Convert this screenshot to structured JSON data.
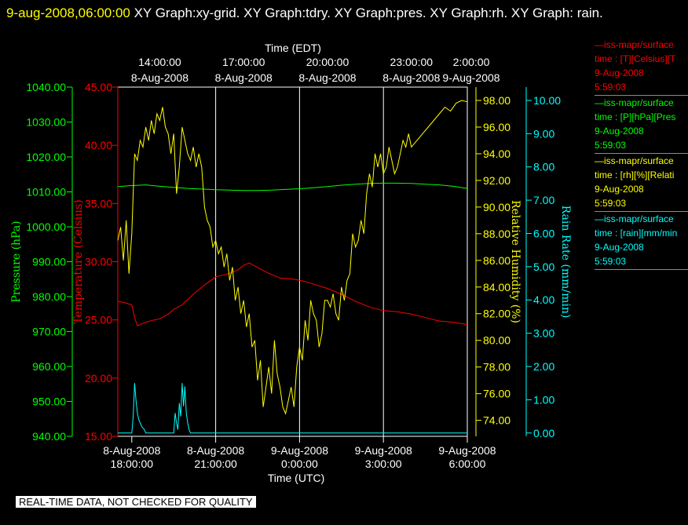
{
  "header": {
    "timestamp": "9-aug-2008,06:00:00",
    "graph_titles": "XY Graph:xy-grid.  XY Graph:tdry.  XY Graph:pres.  XY Graph:rh.  XY Graph: rain."
  },
  "legend": [
    {
      "name": "—iss-mapr/surface",
      "units": "time : [T][Celsius][T",
      "date": "9-Aug-2008",
      "time": "5:59:03",
      "color": "#ff0000"
    },
    {
      "name": "—iss-mapr/surface",
      "units": "time : [P][hPa][Pres",
      "date": "9-Aug-2008",
      "time": "5:59:03",
      "color": "#00ff00"
    },
    {
      "name": "—iss-mapr/surface",
      "units": "time : [rh][%][Relati",
      "date": "9-Aug-2008",
      "time": "5:59:03",
      "color": "#ffff00"
    },
    {
      "name": "—iss-mapr/surface",
      "units": "time : [rain][mm/min",
      "date": "9-Aug-2008",
      "time": "5:59:03",
      "color": "#00ffff"
    }
  ],
  "disclaimer": "REAL-TIME DATA, NOT CHECKED FOR QUALITY",
  "chart_data": {
    "type": "line",
    "x_top_label": "Time (EDT)",
    "x_bottom_label": "Time (UTC)",
    "x_range_utc_hours": [
      17.5,
      30.0
    ],
    "top_ticks": [
      {
        "hour": 19,
        "line1": "14:00:00",
        "line2": "8-Aug-2008"
      },
      {
        "hour": 22,
        "line1": "17:00:00",
        "line2": "8-Aug-2008"
      },
      {
        "hour": 25,
        "line1": "20:00:00",
        "line2": "8-Aug-2008"
      },
      {
        "hour": 28,
        "line1": "23:00:00",
        "line2": "8-Aug-2008"
      },
      {
        "hour": 31,
        "line1": "2:00:00",
        "line2": "9-Aug-2008"
      }
    ],
    "bottom_ticks": [
      {
        "hour": 18,
        "line1": "8-Aug-2008",
        "line2": "18:00:00"
      },
      {
        "hour": 21,
        "line1": "8-Aug-2008",
        "line2": "21:00:00"
      },
      {
        "hour": 24,
        "line1": "9-Aug-2008",
        "line2": "0:00:00"
      },
      {
        "hour": 27,
        "line1": "9-Aug-2008",
        "line2": "3:00:00"
      },
      {
        "hour": 30,
        "line1": "9-Aug-2008",
        "line2": "6:00:00"
      }
    ],
    "axes": {
      "pressure": {
        "label": "Pressure (hPa)",
        "color": "#00ff00",
        "range": [
          940,
          1040
        ],
        "ticks": [
          "940.00",
          "950.00",
          "960.00",
          "970.00",
          "980.00",
          "990.00",
          "1000.00",
          "1010.00",
          "1020.00",
          "1030.00",
          "1040.00"
        ]
      },
      "temperature": {
        "label": "Temperature (Celsius)",
        "color": "#ff0000",
        "range": [
          15,
          45
        ],
        "ticks": [
          "15.00",
          "20.00",
          "25.00",
          "30.00",
          "35.00",
          "40.00",
          "45.00"
        ]
      },
      "humidity": {
        "label": "Relative Humidity (%)",
        "color": "#ffff00",
        "range": [
          72.8,
          99.0
        ],
        "ticks": [
          "74.00",
          "76.00",
          "78.00",
          "80.00",
          "82.00",
          "84.00",
          "86.00",
          "88.00",
          "90.00",
          "92.00",
          "94.00",
          "96.00",
          "98.00"
        ]
      },
      "rain": {
        "label": "Rain Rate (mm/min)",
        "color": "#00ffff",
        "range": [
          -0.1,
          10.4
        ],
        "ticks": [
          "0.00",
          "1.00",
          "2.00",
          "3.00",
          "4.00",
          "5.00",
          "6.00",
          "7.00",
          "8.00",
          "9.00",
          "10.00"
        ]
      }
    },
    "series": [
      {
        "name": "temperature",
        "axis": "temperature",
        "color": "#ff0000",
        "x": [
          17.5,
          17.7,
          18.0,
          18.1,
          18.2,
          18.5,
          18.8,
          19.0,
          19.3,
          19.5,
          19.8,
          20.2,
          20.6,
          21.0,
          21.5,
          21.8,
          22.0,
          22.2,
          22.5,
          22.9,
          23.3,
          23.8,
          24.2,
          24.6,
          25.0,
          25.5,
          26.0,
          26.5,
          27.0,
          27.5,
          28.0,
          28.5,
          29.0,
          29.5,
          30.0
        ],
        "y": [
          26.6,
          26.5,
          26.3,
          25.2,
          24.5,
          24.8,
          25.0,
          25.1,
          25.5,
          25.9,
          26.3,
          27.2,
          28.0,
          28.7,
          29.0,
          29.3,
          29.7,
          29.9,
          29.5,
          29.0,
          28.6,
          28.5,
          28.3,
          28.0,
          27.7,
          27.2,
          26.6,
          26.1,
          25.8,
          25.7,
          25.5,
          25.2,
          24.9,
          24.8,
          24.6
        ]
      },
      {
        "name": "pressure",
        "axis": "pressure",
        "color": "#00ff00",
        "x": [
          17.5,
          18.0,
          18.5,
          19.0,
          19.5,
          20.0,
          20.5,
          21.0,
          21.5,
          22.0,
          22.5,
          23.0,
          23.5,
          24.0,
          24.5,
          25.0,
          25.5,
          26.0,
          26.5,
          27.0,
          27.5,
          28.0,
          28.5,
          29.0,
          29.5,
          30.0
        ],
        "y": [
          1011.5,
          1011.8,
          1012.0,
          1011.6,
          1011.3,
          1011.0,
          1010.8,
          1010.6,
          1010.5,
          1010.4,
          1010.4,
          1010.5,
          1010.7,
          1010.9,
          1011.2,
          1011.5,
          1011.9,
          1012.2,
          1012.4,
          1012.5,
          1012.5,
          1012.4,
          1012.2,
          1012.0,
          1011.6,
          1011.0
        ]
      },
      {
        "name": "humidity",
        "axis": "humidity",
        "color": "#ffff00",
        "x": [
          17.5,
          17.6,
          17.7,
          17.8,
          17.9,
          18.0,
          18.1,
          18.2,
          18.3,
          18.4,
          18.5,
          18.6,
          18.7,
          18.8,
          18.9,
          19.0,
          19.1,
          19.2,
          19.3,
          19.4,
          19.5,
          19.6,
          19.7,
          19.8,
          19.9,
          20.0,
          20.1,
          20.2,
          20.3,
          20.4,
          20.5,
          20.6,
          20.7,
          20.8,
          20.9,
          21.0,
          21.1,
          21.2,
          21.3,
          21.4,
          21.5,
          21.6,
          21.7,
          21.8,
          21.9,
          22.0,
          22.1,
          22.2,
          22.3,
          22.4,
          22.5,
          22.6,
          22.7,
          22.8,
          22.9,
          23.0,
          23.1,
          23.2,
          23.3,
          23.4,
          23.5,
          23.6,
          23.7,
          23.8,
          23.9,
          24.0,
          24.1,
          24.2,
          24.3,
          24.4,
          24.5,
          24.6,
          24.7,
          24.8,
          24.9,
          25.0,
          25.1,
          25.2,
          25.3,
          25.4,
          25.5,
          25.6,
          25.7,
          25.8,
          25.9,
          26.0,
          26.1,
          26.2,
          26.3,
          26.4,
          26.5,
          26.6,
          26.7,
          26.8,
          26.9,
          27.0,
          27.1,
          27.2,
          27.3,
          27.4,
          27.5,
          27.6,
          27.7,
          27.8,
          27.9,
          28.0,
          28.2,
          28.4,
          28.6,
          28.8,
          29.0,
          29.2,
          29.4,
          29.6,
          29.8,
          30.0
        ],
        "y": [
          87.5,
          88.5,
          86.0,
          89.0,
          85.0,
          88.0,
          94.0,
          93.5,
          95.0,
          94.5,
          96.0,
          95.0,
          96.5,
          95.5,
          97.0,
          96.5,
          97.5,
          96.0,
          95.5,
          94.0,
          95.5,
          91.0,
          93.0,
          96.0,
          95.0,
          94.0,
          93.5,
          94.5,
          93.0,
          94.0,
          93.0,
          90.0,
          89.0,
          88.5,
          87.0,
          87.5,
          86.5,
          87.0,
          85.5,
          86.5,
          84.5,
          85.5,
          83.0,
          84.0,
          82.0,
          83.0,
          81.0,
          82.0,
          79.5,
          80.0,
          77.0,
          78.5,
          75.0,
          76.5,
          78.0,
          76.0,
          80.0,
          77.5,
          76.5,
          75.0,
          74.5,
          75.5,
          76.5,
          75.0,
          78.0,
          79.5,
          78.5,
          81.5,
          80.0,
          83.0,
          82.0,
          81.5,
          79.5,
          80.5,
          83.0,
          83.0,
          82.5,
          83.5,
          82.0,
          81.5,
          84.0,
          83.0,
          84.5,
          85.0,
          88.0,
          87.0,
          87.5,
          89.0,
          88.0,
          91.0,
          92.5,
          91.5,
          94.0,
          93.0,
          94.0,
          92.5,
          93.0,
          94.5,
          93.5,
          92.5,
          93.0,
          94.0,
          95.0,
          94.5,
          95.5,
          94.5,
          95.0,
          95.5,
          96.0,
          96.5,
          97.0,
          97.5,
          97.2,
          97.8,
          98.0,
          97.9
        ]
      },
      {
        "name": "rain",
        "axis": "rain",
        "color": "#00ffff",
        "x": [
          17.5,
          18.0,
          18.05,
          18.1,
          18.15,
          18.2,
          18.25,
          18.3,
          18.35,
          18.4,
          18.45,
          18.5,
          19.5,
          19.55,
          19.6,
          19.65,
          19.7,
          19.75,
          19.8,
          19.85,
          19.9,
          19.95,
          20.0,
          20.05,
          20.1,
          20.5,
          25.0,
          30.0
        ],
        "y": [
          0.0,
          0.0,
          0.5,
          1.5,
          1.0,
          0.6,
          0.4,
          0.3,
          0.2,
          0.15,
          0.1,
          0.0,
          0.0,
          0.6,
          0.3,
          0.1,
          0.9,
          0.5,
          1.5,
          0.8,
          1.4,
          0.6,
          0.3,
          0.1,
          0.0,
          0.0,
          0.0,
          0.0
        ]
      }
    ]
  }
}
